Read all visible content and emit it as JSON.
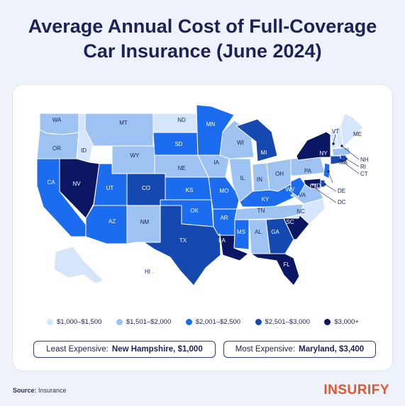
{
  "title_line1": "Average Annual Cost of Full-Coverage",
  "title_line2": "Car Insurance (June 2024)",
  "colors": {
    "tier1": "#d6e6fa",
    "tier2": "#9ec3f2",
    "tier3": "#1c6cf0",
    "tier4": "#1549b0",
    "tier5": "#0b1763"
  },
  "legend": [
    {
      "label": "$1,000–$1,500",
      "color": "#d6e6fa"
    },
    {
      "label": "$1,501–$2,000",
      "color": "#9ec3f2"
    },
    {
      "label": "$2,001–$2,500",
      "color": "#1c6cf0"
    },
    {
      "label": "$2,501–$3,000",
      "color": "#1549b0"
    },
    {
      "label": "$3,000+",
      "color": "#0b1763"
    }
  ],
  "states": [
    {
      "code": "WA",
      "tier": 2
    },
    {
      "code": "OR",
      "tier": 2
    },
    {
      "code": "CA",
      "tier": 3
    },
    {
      "code": "ID",
      "tier": 1
    },
    {
      "code": "NV",
      "tier": 5
    },
    {
      "code": "MT",
      "tier": 2
    },
    {
      "code": "WY",
      "tier": 2
    },
    {
      "code": "UT",
      "tier": 3
    },
    {
      "code": "AZ",
      "tier": 3
    },
    {
      "code": "CO",
      "tier": 4
    },
    {
      "code": "NM",
      "tier": 2
    },
    {
      "code": "ND",
      "tier": 1
    },
    {
      "code": "SD",
      "tier": 3
    },
    {
      "code": "NE",
      "tier": 2
    },
    {
      "code": "KS",
      "tier": 3
    },
    {
      "code": "OK",
      "tier": 3
    },
    {
      "code": "TX",
      "tier": 4
    },
    {
      "code": "MN",
      "tier": 3
    },
    {
      "code": "IA",
      "tier": 2
    },
    {
      "code": "MO",
      "tier": 3
    },
    {
      "code": "AR",
      "tier": 3
    },
    {
      "code": "LA",
      "tier": 5
    },
    {
      "code": "WI",
      "tier": 2
    },
    {
      "code": "IL",
      "tier": 2
    },
    {
      "code": "MI",
      "tier": 4
    },
    {
      "code": "IN",
      "tier": 2
    },
    {
      "code": "OH",
      "tier": 2
    },
    {
      "code": "KY",
      "tier": 3
    },
    {
      "code": "TN",
      "tier": 2
    },
    {
      "code": "MS",
      "tier": 3
    },
    {
      "code": "AL",
      "tier": 2
    },
    {
      "code": "GA",
      "tier": 4
    },
    {
      "code": "FL",
      "tier": 5
    },
    {
      "code": "SC",
      "tier": 5
    },
    {
      "code": "NC",
      "tier": 1
    },
    {
      "code": "VA",
      "tier": 2
    },
    {
      "code": "WV",
      "tier": 3
    },
    {
      "code": "PA",
      "tier": 2
    },
    {
      "code": "NY",
      "tier": 5
    },
    {
      "code": "VT",
      "tier": 1
    },
    {
      "code": "NH",
      "tier": 1
    },
    {
      "code": "ME",
      "tier": 1
    },
    {
      "code": "MA",
      "tier": 2
    },
    {
      "code": "RI",
      "tier": 4
    },
    {
      "code": "CT",
      "tier": 4
    },
    {
      "code": "NJ",
      "tier": 3
    },
    {
      "code": "DE",
      "tier": 4
    },
    {
      "code": "MD",
      "tier": 5
    },
    {
      "code": "DC",
      "tier": 5
    },
    {
      "code": "AK",
      "tier": 1
    },
    {
      "code": "HI",
      "tier": 1
    }
  ],
  "least_expensive_label": "Least Expensive:",
  "least_expensive_value": "New Hampshire, $1,000",
  "most_expensive_label": "Most Expensive:",
  "most_expensive_value": "Maryland, $3,400",
  "source_label": "Source:",
  "source_value": "Insurance",
  "logo": "INSURIFY"
}
